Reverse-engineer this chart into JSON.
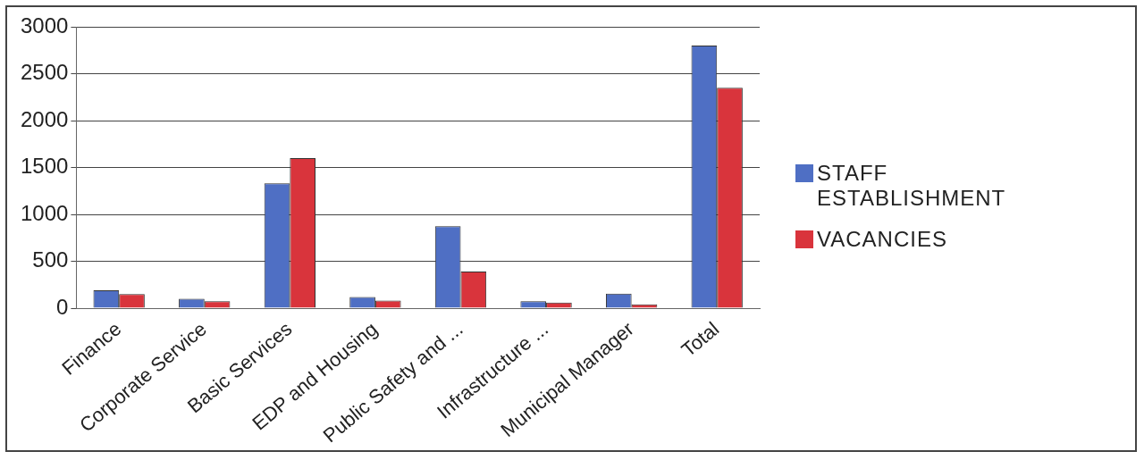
{
  "chart_data": {
    "type": "bar",
    "categories": [
      "Finance",
      "Corporate Service",
      "Basic Services",
      "EDP and Housing",
      "Public Safety and ...",
      "Infrastructure ...",
      "Municipal Manager",
      "Total"
    ],
    "series": [
      {
        "name": "STAFF ESTABLISHMENT",
        "color": "#4f6fc4",
        "values": [
          190,
          100,
          1330,
          120,
          875,
          75,
          155,
          2800
        ]
      },
      {
        "name": "VACANCIES",
        "color": "#d9343c",
        "values": [
          150,
          75,
          1600,
          80,
          390,
          60,
          40,
          2350
        ]
      }
    ],
    "ylim": [
      0,
      3000
    ],
    "yticks": [
      0,
      500,
      1000,
      1500,
      2000,
      2500,
      3000
    ],
    "grid": "y",
    "legend": "right"
  }
}
